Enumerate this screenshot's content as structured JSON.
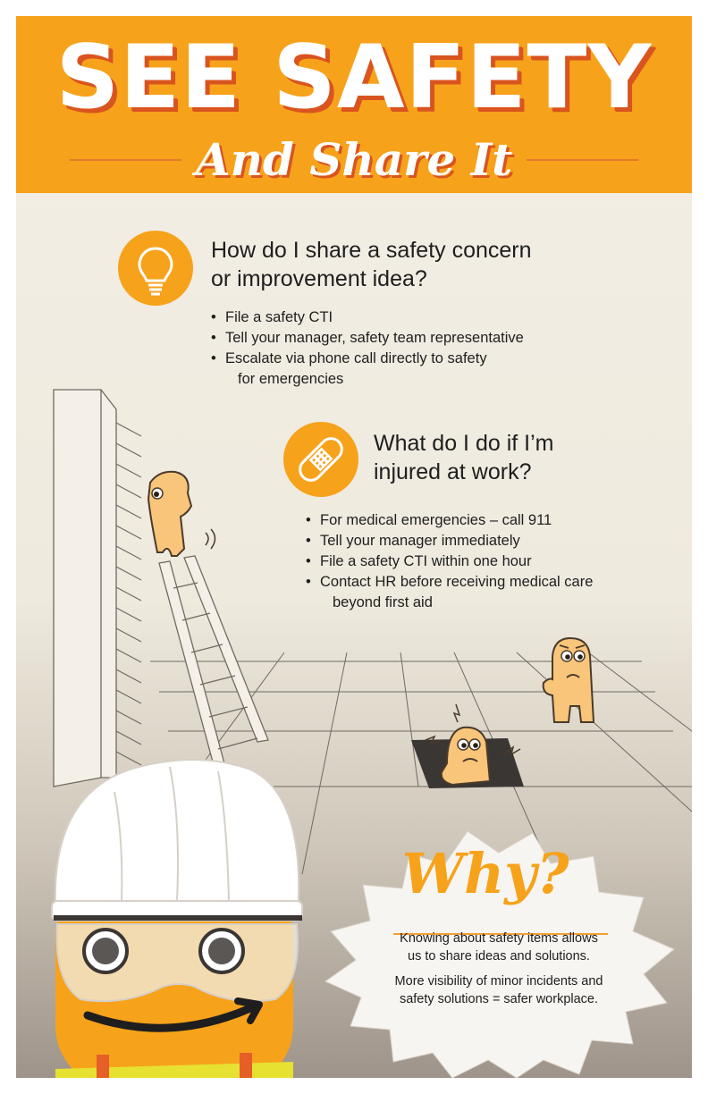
{
  "header": {
    "title": "SEE SAFETY",
    "subtitle": "And Share It",
    "color": "#f7a21b",
    "shadow_color": "#d9541f"
  },
  "section1": {
    "icon": "lightbulb-icon",
    "question_line1": "How do I share a safety concern",
    "question_line2": "or improvement idea?",
    "bullets": [
      "File a safety CTI",
      "Tell your manager, safety team representative",
      "Escalate via phone call directly to safety"
    ],
    "bullet3_cont": "for emergencies"
  },
  "section2": {
    "icon": "bandage-icon",
    "question_line1": "What do I do if I’m",
    "question_line2": "injured at work?",
    "bullets": [
      "For medical emergencies – call 911",
      "Tell your manager immediately",
      "File a safety CTI within one hour",
      "Contact HR before receiving medical care"
    ],
    "bullet4_cont": "beyond first aid"
  },
  "why": {
    "title": "Why?",
    "text1_line1": "Knowing about safety items allows",
    "text1_line2": "us to share ideas and solutions.",
    "text2_line1": "More visibility of minor incidents and",
    "text2_line2": "safety solutions = safer workplace."
  }
}
